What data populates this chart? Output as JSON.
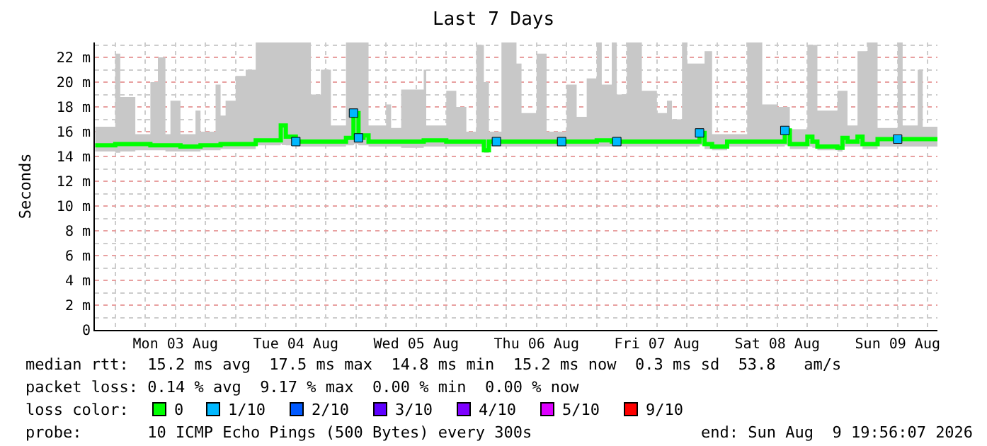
{
  "chart_data": {
    "type": "step",
    "title": "Last 7 Days",
    "ylabel": "Seconds",
    "x": [
      "2026-08-02T20:00",
      "2026-08-03T00:00",
      "2026-08-03T01:00",
      "2026-08-03T04:00",
      "2026-08-03T07:00",
      "2026-08-03T08:30",
      "2026-08-03T10:00",
      "2026-08-03T11:00",
      "2026-08-03T13:00",
      "2026-08-03T16:00",
      "2026-08-03T17:00",
      "2026-08-03T20:00",
      "2026-08-03T21:00",
      "2026-08-03T22:00",
      "2026-08-04T00:00",
      "2026-08-04T02:00",
      "2026-08-04T04:00",
      "2026-08-04T09:00",
      "2026-08-04T10:00",
      "2026-08-04T12:00",
      "2026-08-04T15:00",
      "2026-08-04T17:00",
      "2026-08-04T19:00",
      "2026-08-04T22:00",
      "2026-08-04T23:30",
      "2026-08-05T00:30",
      "2026-08-05T01:30",
      "2026-08-05T02:30",
      "2026-08-05T06:00",
      "2026-08-05T07:00",
      "2026-08-05T09:00",
      "2026-08-05T13:30",
      "2026-08-05T14:00",
      "2026-08-05T18:00",
      "2026-08-05T20:00",
      "2026-08-05T22:00",
      "2026-08-06T00:00",
      "2026-08-06T01:30",
      "2026-08-06T02:30",
      "2026-08-06T05:00",
      "2026-08-06T08:00",
      "2026-08-06T09:00",
      "2026-08-06T12:00",
      "2026-08-06T14:00",
      "2026-08-06T18:00",
      "2026-08-06T20:00",
      "2026-08-06T22:00",
      "2026-08-07T00:00",
      "2026-08-07T01:00",
      "2026-08-07T03:00",
      "2026-08-07T04:00",
      "2026-08-07T06:00",
      "2026-08-07T09:00",
      "2026-08-07T12:00",
      "2026-08-07T14:00",
      "2026-08-07T15:00",
      "2026-08-07T17:00",
      "2026-08-07T18:00",
      "2026-08-07T20:30",
      "2026-08-07T21:30",
      "2026-08-07T23:00",
      "2026-08-08T02:00",
      "2026-08-08T06:00",
      "2026-08-08T09:00",
      "2026-08-08T12:00",
      "2026-08-08T13:30",
      "2026-08-08T14:30",
      "2026-08-08T18:00",
      "2026-08-08T19:00",
      "2026-08-08T20:00",
      "2026-08-09T00:00",
      "2026-08-09T01:00",
      "2026-08-09T02:00",
      "2026-08-09T04:00",
      "2026-08-09T05:00",
      "2026-08-09T06:00",
      "2026-08-09T08:00",
      "2026-08-09T12:00",
      "2026-08-09T13:00",
      "2026-08-09T16:00",
      "2026-08-09T17:00",
      "2026-08-09T19:56"
    ],
    "series": [
      {
        "name": "0",
        "color": "#00ff00",
        "values": [
          14.9,
          15.0,
          15.0,
          15.0,
          14.9,
          14.9,
          14.9,
          14.9,
          14.8,
          14.8,
          14.9,
          14.9,
          15.0,
          15.0,
          15.0,
          15.0,
          15.3,
          16.5,
          15.6,
          15.2,
          15.2,
          15.2,
          15.2,
          15.5,
          17.5,
          15.5,
          15.7,
          15.2,
          15.2,
          15.2,
          15.2,
          15.3,
          15.3,
          15.2,
          15.2,
          15.2,
          15.2,
          14.5,
          15.2,
          15.2,
          15.2,
          15.2,
          15.2,
          15.2,
          15.2,
          15.2,
          15.2,
          15.3,
          15.3,
          15.2,
          15.2,
          15.2,
          15.2,
          15.2,
          15.2,
          15.2,
          15.2,
          15.2,
          15.9,
          15.0,
          14.8,
          15.2,
          15.2,
          15.2,
          15.2,
          16.1,
          15.0,
          15.6,
          15.2,
          14.8,
          14.7,
          15.5,
          15.2,
          15.6,
          15.0,
          15.0,
          15.4,
          15.4,
          15.4,
          15.4,
          15.4,
          15.4
        ],
        "lower": [
          14.4,
          14.3,
          14.4,
          14.5,
          14.5,
          14.5,
          14.4,
          14.4,
          14.4,
          14.4,
          14.5,
          14.5,
          14.6,
          14.6,
          14.6,
          14.6,
          14.9,
          15.0,
          14.9,
          14.8,
          14.8,
          14.8,
          14.8,
          14.9,
          15.0,
          14.9,
          14.9,
          14.8,
          14.8,
          14.8,
          14.7,
          14.8,
          14.8,
          14.8,
          14.8,
          14.8,
          14.8,
          14.3,
          14.8,
          14.8,
          14.8,
          14.8,
          14.8,
          14.8,
          14.8,
          14.8,
          14.8,
          14.8,
          14.8,
          14.8,
          14.8,
          14.8,
          14.8,
          14.8,
          14.8,
          14.8,
          14.8,
          14.8,
          14.9,
          14.6,
          14.5,
          14.8,
          14.8,
          14.8,
          14.8,
          14.9,
          14.6,
          14.8,
          14.7,
          14.5,
          14.4,
          14.8,
          14.8,
          14.8,
          14.6,
          14.6,
          14.8,
          14.8,
          14.8,
          14.8,
          14.8,
          14.8
        ],
        "upper": [
          16.4,
          22.3,
          18.8,
          15.8,
          20.0,
          22.0,
          15.8,
          18.5,
          15.8,
          17.7,
          16.0,
          19.8,
          17.3,
          18.5,
          20.5,
          21.0,
          23.2,
          23.2,
          23.2,
          23.2,
          19.0,
          21.0,
          16.5,
          23.2,
          23.2,
          23.2,
          23.2,
          16.5,
          18.2,
          16.3,
          19.4,
          21.0,
          16.5,
          19.3,
          18.0,
          16.0,
          23.0,
          20.0,
          16.0,
          23.2,
          21.5,
          17.5,
          22.3,
          16.0,
          19.8,
          17.2,
          20.3,
          23.2,
          19.8,
          23.2,
          19.0,
          23.2,
          19.3,
          17.5,
          18.5,
          17.0,
          23.2,
          21.5,
          21.5,
          22.5,
          15.8,
          15.8,
          23.2,
          18.2,
          18.0,
          18.0,
          16.2,
          23.0,
          23.0,
          17.7,
          19.3,
          19.3,
          16.5,
          22.5,
          22.5,
          23.2,
          16.3,
          23.2,
          16.5,
          21.0,
          16.4,
          16.4
        ]
      },
      {
        "name": "1/10",
        "color": "#00b8ff",
        "type": "scatter",
        "marker": "square",
        "x": [
          "2026-08-04T12:00",
          "2026-08-04T23:30",
          "2026-08-05T00:30",
          "2026-08-06T04:00",
          "2026-08-06T17:00",
          "2026-08-07T04:00",
          "2026-08-07T20:30",
          "2026-08-08T13:30",
          "2026-08-09T12:00"
        ],
        "values": [
          15.2,
          17.5,
          15.5,
          15.2,
          15.2,
          15.2,
          15.9,
          16.1,
          15.4
        ]
      },
      {
        "name": "2/10",
        "color": "#0059ff",
        "type": "scatter",
        "marker": "square",
        "values": [
          null,
          null,
          null,
          null,
          null,
          null,
          null,
          null,
          null,
          null,
          null,
          null,
          null,
          null,
          null,
          null,
          null,
          null,
          null,
          null,
          null,
          null,
          null,
          null,
          null,
          null,
          null,
          null,
          null,
          null,
          null,
          null,
          null,
          null,
          null,
          null,
          null,
          null,
          null,
          null,
          null,
          null,
          null,
          null,
          null,
          null,
          null,
          null,
          null,
          null,
          null,
          null,
          null,
          null,
          null,
          null,
          null,
          null,
          null,
          null,
          null,
          null,
          null,
          null,
          null,
          null,
          null,
          null,
          null,
          null,
          null,
          null,
          null,
          null,
          null,
          null,
          null,
          null,
          null,
          null,
          null,
          null
        ]
      },
      {
        "name": "3/10",
        "color": "#5e00ff",
        "type": "scatter",
        "marker": "square",
        "values": [
          null,
          null,
          null,
          null,
          null,
          null,
          null,
          null,
          null,
          null,
          null,
          null,
          null,
          null,
          null,
          null,
          null,
          null,
          null,
          null,
          null,
          null,
          null,
          null,
          null,
          null,
          null,
          null,
          null,
          null,
          null,
          null,
          null,
          null,
          null,
          null,
          null,
          null,
          null,
          null,
          null,
          null,
          null,
          null,
          null,
          null,
          null,
          null,
          null,
          null,
          null,
          null,
          null,
          null,
          null,
          null,
          null,
          null,
          null,
          null,
          null,
          null,
          null,
          null,
          null,
          null,
          null,
          null,
          null,
          null,
          null,
          null,
          null,
          null,
          null,
          null,
          null,
          null,
          null,
          null,
          null,
          null
        ]
      },
      {
        "name": "4/10",
        "color": "#7e00ff",
        "type": "scatter",
        "marker": "square",
        "values": [
          null,
          null,
          null,
          null,
          null,
          null,
          null,
          null,
          null,
          null,
          null,
          null,
          null,
          null,
          null,
          null,
          null,
          null,
          null,
          null,
          null,
          null,
          null,
          null,
          null,
          null,
          null,
          null,
          null,
          null,
          null,
          null,
          null,
          null,
          null,
          null,
          null,
          null,
          null,
          null,
          null,
          null,
          null,
          null,
          null,
          null,
          null,
          null,
          null,
          null,
          null,
          null,
          null,
          null,
          null,
          null,
          null,
          null,
          null,
          null,
          null,
          null,
          null,
          null,
          null,
          null,
          null,
          null,
          null,
          null,
          null,
          null,
          null,
          null,
          null,
          null,
          null,
          null,
          null,
          null,
          null,
          null
        ]
      },
      {
        "name": "5/10",
        "color": "#dd00ff",
        "type": "scatter",
        "marker": "square",
        "values": [
          null,
          null,
          null,
          null,
          null,
          null,
          null,
          null,
          null,
          null,
          null,
          null,
          null,
          null,
          null,
          null,
          null,
          null,
          null,
          null,
          null,
          null,
          null,
          null,
          null,
          null,
          null,
          null,
          null,
          null,
          null,
          null,
          null,
          null,
          null,
          null,
          null,
          null,
          null,
          null,
          null,
          null,
          null,
          null,
          null,
          null,
          null,
          null,
          null,
          null,
          null,
          null,
          null,
          null,
          null,
          null,
          null,
          null,
          null,
          null,
          null,
          null,
          null,
          null,
          null,
          null,
          null,
          null,
          null,
          null,
          null,
          null,
          null,
          null,
          null,
          null,
          null,
          null,
          null,
          null,
          null,
          null
        ]
      },
      {
        "name": "9/10",
        "color": "#ff0000",
        "type": "scatter",
        "marker": "square",
        "values": [
          null,
          null,
          null,
          null,
          null,
          null,
          null,
          null,
          null,
          null,
          null,
          null,
          null,
          null,
          null,
          null,
          null,
          null,
          null,
          null,
          null,
          null,
          null,
          null,
          null,
          null,
          null,
          null,
          null,
          null,
          null,
          null,
          null,
          null,
          null,
          null,
          null,
          null,
          null,
          null,
          null,
          null,
          null,
          null,
          null,
          null,
          null,
          null,
          null,
          null,
          null,
          null,
          null,
          null,
          null,
          null,
          null,
          null,
          null,
          null,
          null,
          null,
          null,
          null,
          null,
          null,
          null,
          null,
          null,
          null,
          null,
          null,
          null,
          null,
          null,
          null,
          null,
          null,
          null,
          null,
          null,
          null
        ]
      }
    ],
    "legend_title": "loss color:",
    "legend": "bottom",
    "grid": true,
    "xlim": [
      "2026-08-02T19:56",
      "2026-08-09T19:56"
    ],
    "xticks": [
      {
        "value": "2026-08-03T12:00",
        "label": "Mon 03 Aug"
      },
      {
        "value": "2026-08-04T12:00",
        "label": "Tue 04 Aug"
      },
      {
        "value": "2026-08-05T12:00",
        "label": "Wed 05 Aug"
      },
      {
        "value": "2026-08-06T12:00",
        "label": "Thu 06 Aug"
      },
      {
        "value": "2026-08-07T12:00",
        "label": "Fri 07 Aug"
      },
      {
        "value": "2026-08-08T12:00",
        "label": "Sat 08 Aug"
      },
      {
        "value": "2026-08-09T12:00",
        "label": "Sun 09 Aug"
      }
    ],
    "ylim": [
      0,
      23.2
    ],
    "yticks": [
      0,
      {
        "value": 2,
        "label": "2 m"
      },
      {
        "value": 4,
        "label": "4 m"
      },
      {
        "value": 6,
        "label": "6 m"
      },
      {
        "value": 8,
        "label": "8 m"
      },
      {
        "value": 10,
        "label": "10 m"
      },
      {
        "value": 12,
        "label": "12 m"
      },
      {
        "value": 14,
        "label": "14 m"
      },
      {
        "value": 16,
        "label": "16 m"
      },
      {
        "value": 18,
        "label": "18 m"
      },
      {
        "value": 20,
        "label": "20 m"
      },
      {
        "value": 22,
        "label": "22 m"
      }
    ],
    "annotations": [
      "median rtt:  15.2 ms avg  17.5 ms max  14.8 ms min  15.2 ms now  0.3 ms sd  53.8   am/s",
      "packet loss: 0.14 % avg  9.17 % max  0.00 % min  0.00 % now",
      "probe:       10 ICMP Echo Pings (500 Bytes) every 300s",
      "end: Sun Aug  9 19:56:07 2026"
    ]
  }
}
